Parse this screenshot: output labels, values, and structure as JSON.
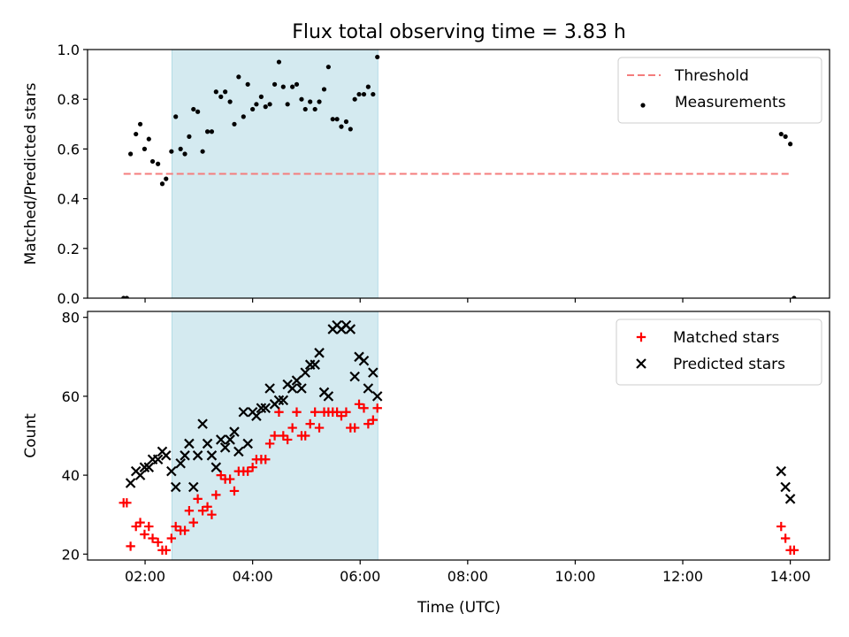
{
  "figure": {
    "title": "Flux total observing time = 3.83 h",
    "xlabel": "Time (UTC)",
    "x_ticks": [
      "02:00",
      "04:00",
      "06:00",
      "08:00",
      "10:00",
      "12:00",
      "14:00"
    ]
  },
  "chart_data": [
    {
      "type": "scatter",
      "ylabel": "Matched/Predicted stars",
      "xlim": [
        0.93,
        14.73
      ],
      "ylim": [
        0.0,
        1.0
      ],
      "y_ticks": [
        "0.0",
        "0.2",
        "0.4",
        "0.6",
        "0.8",
        "1.0"
      ],
      "legend_position": "top-right",
      "highlight_span": [
        2.5,
        6.33
      ],
      "highlight_color": "#d4eaf0",
      "threshold": {
        "name": "Threshold",
        "y": 0.5,
        "x": [
          1.6,
          14.0
        ],
        "color": "#f47c7c",
        "style": "dashed"
      },
      "series": [
        {
          "name": "Measurements",
          "marker": "dot",
          "color": "#000000",
          "points": [
            [
              1.6,
              0.0
            ],
            [
              1.66,
              0.0
            ],
            [
              1.73,
              0.58
            ],
            [
              1.83,
              0.66
            ],
            [
              1.91,
              0.7
            ],
            [
              1.99,
              0.6
            ],
            [
              2.07,
              0.64
            ],
            [
              2.14,
              0.55
            ],
            [
              2.24,
              0.54
            ],
            [
              2.32,
              0.46
            ],
            [
              2.39,
              0.48
            ],
            [
              2.49,
              0.59
            ],
            [
              2.57,
              0.73
            ],
            [
              2.66,
              0.6
            ],
            [
              2.74,
              0.58
            ],
            [
              2.82,
              0.65
            ],
            [
              2.9,
              0.76
            ],
            [
              2.98,
              0.75
            ],
            [
              3.07,
              0.59
            ],
            [
              3.16,
              0.67
            ],
            [
              3.24,
              0.67
            ],
            [
              3.32,
              0.83
            ],
            [
              3.41,
              0.81
            ],
            [
              3.49,
              0.83
            ],
            [
              3.58,
              0.79
            ],
            [
              3.66,
              0.7
            ],
            [
              3.74,
              0.89
            ],
            [
              3.83,
              0.73
            ],
            [
              3.91,
              0.86
            ],
            [
              4.0,
              0.76
            ],
            [
              4.07,
              0.78
            ],
            [
              4.16,
              0.81
            ],
            [
              4.24,
              0.77
            ],
            [
              4.32,
              0.78
            ],
            [
              4.41,
              0.86
            ],
            [
              4.49,
              0.95
            ],
            [
              4.57,
              0.85
            ],
            [
              4.65,
              0.78
            ],
            [
              4.74,
              0.85
            ],
            [
              4.82,
              0.86
            ],
            [
              4.91,
              0.8
            ],
            [
              4.98,
              0.76
            ],
            [
              5.07,
              0.79
            ],
            [
              5.16,
              0.76
            ],
            [
              5.24,
              0.79
            ],
            [
              5.33,
              0.84
            ],
            [
              5.41,
              0.93
            ],
            [
              5.49,
              0.72
            ],
            [
              5.57,
              0.72
            ],
            [
              5.65,
              0.69
            ],
            [
              5.74,
              0.71
            ],
            [
              5.82,
              0.68
            ],
            [
              5.9,
              0.8
            ],
            [
              5.98,
              0.82
            ],
            [
              6.07,
              0.82
            ],
            [
              6.15,
              0.85
            ],
            [
              6.24,
              0.82
            ],
            [
              6.32,
              0.97
            ],
            [
              13.83,
              0.66
            ],
            [
              13.91,
              0.65
            ],
            [
              14.0,
              0.62
            ],
            [
              14.07,
              0.0
            ]
          ]
        }
      ]
    },
    {
      "type": "scatter",
      "ylabel": "Count",
      "xlim": [
        0.93,
        14.73
      ],
      "ylim": [
        18.5,
        81.5
      ],
      "y_ticks": [
        "20",
        "40",
        "60",
        "80"
      ],
      "legend_position": "top-right",
      "highlight_span": [
        2.5,
        6.33
      ],
      "highlight_color": "#d4eaf0",
      "series": [
        {
          "name": "Matched stars",
          "marker": "plus",
          "color": "#ff0000",
          "points": [
            [
              1.6,
              33
            ],
            [
              1.66,
              33
            ],
            [
              1.73,
              22
            ],
            [
              1.83,
              27
            ],
            [
              1.91,
              28
            ],
            [
              1.99,
              25
            ],
            [
              2.07,
              27
            ],
            [
              2.14,
              24
            ],
            [
              2.24,
              23
            ],
            [
              2.32,
              21
            ],
            [
              2.39,
              21
            ],
            [
              2.49,
              24
            ],
            [
              2.57,
              27
            ],
            [
              2.66,
              26
            ],
            [
              2.74,
              26
            ],
            [
              2.82,
              31
            ],
            [
              2.9,
              28
            ],
            [
              2.98,
              34
            ],
            [
              3.07,
              31
            ],
            [
              3.16,
              32
            ],
            [
              3.24,
              30
            ],
            [
              3.32,
              35
            ],
            [
              3.41,
              40
            ],
            [
              3.49,
              39
            ],
            [
              3.58,
              39
            ],
            [
              3.66,
              36
            ],
            [
              3.74,
              41
            ],
            [
              3.83,
              41
            ],
            [
              3.91,
              41
            ],
            [
              4.0,
              42
            ],
            [
              4.07,
              44
            ],
            [
              4.16,
              44
            ],
            [
              4.24,
              44
            ],
            [
              4.32,
              48
            ],
            [
              4.41,
              50
            ],
            [
              4.49,
              56
            ],
            [
              4.57,
              50
            ],
            [
              4.65,
              49
            ],
            [
              4.74,
              52
            ],
            [
              4.82,
              56
            ],
            [
              4.91,
              50
            ],
            [
              4.98,
              50
            ],
            [
              5.07,
              53
            ],
            [
              5.16,
              56
            ],
            [
              5.24,
              52
            ],
            [
              5.33,
              56
            ],
            [
              5.41,
              56
            ],
            [
              5.49,
              56
            ],
            [
              5.57,
              56
            ],
            [
              5.65,
              55
            ],
            [
              5.74,
              56
            ],
            [
              5.82,
              52
            ],
            [
              5.9,
              52
            ],
            [
              5.98,
              58
            ],
            [
              6.07,
              57
            ],
            [
              6.15,
              53
            ],
            [
              6.24,
              54
            ],
            [
              6.32,
              57
            ],
            [
              13.83,
              27
            ],
            [
              13.91,
              24
            ],
            [
              14.0,
              21
            ],
            [
              14.07,
              21
            ]
          ]
        },
        {
          "name": "Predicted stars",
          "marker": "x",
          "color": "#000000",
          "points": [
            [
              1.73,
              38
            ],
            [
              1.83,
              41
            ],
            [
              1.91,
              40
            ],
            [
              1.99,
              42
            ],
            [
              2.07,
              42
            ],
            [
              2.14,
              44
            ],
            [
              2.24,
              44
            ],
            [
              2.32,
              46
            ],
            [
              2.39,
              45
            ],
            [
              2.49,
              41
            ],
            [
              2.57,
              37
            ],
            [
              2.66,
              43
            ],
            [
              2.74,
              45
            ],
            [
              2.82,
              48
            ],
            [
              2.9,
              37
            ],
            [
              2.98,
              45
            ],
            [
              3.07,
              53
            ],
            [
              3.16,
              48
            ],
            [
              3.24,
              45
            ],
            [
              3.32,
              42
            ],
            [
              3.41,
              49
            ],
            [
              3.49,
              47
            ],
            [
              3.58,
              49
            ],
            [
              3.66,
              51
            ],
            [
              3.74,
              46
            ],
            [
              3.83,
              56
            ],
            [
              3.91,
              48
            ],
            [
              4.0,
              56
            ],
            [
              4.07,
              55
            ],
            [
              4.16,
              57
            ],
            [
              4.24,
              57
            ],
            [
              4.32,
              62
            ],
            [
              4.41,
              58
            ],
            [
              4.49,
              59
            ],
            [
              4.57,
              59
            ],
            [
              4.65,
              63
            ],
            [
              4.74,
              62
            ],
            [
              4.82,
              64
            ],
            [
              4.91,
              62
            ],
            [
              4.98,
              66
            ],
            [
              5.07,
              68
            ],
            [
              5.16,
              68
            ],
            [
              5.24,
              71
            ],
            [
              5.33,
              61
            ],
            [
              5.41,
              60
            ],
            [
              5.49,
              77
            ],
            [
              5.57,
              78
            ],
            [
              5.65,
              77
            ],
            [
              5.74,
              78
            ],
            [
              5.82,
              77
            ],
            [
              5.9,
              65
            ],
            [
              5.98,
              70
            ],
            [
              6.07,
              69
            ],
            [
              6.15,
              62
            ],
            [
              6.24,
              66
            ],
            [
              6.32,
              60
            ],
            [
              13.83,
              41
            ],
            [
              13.91,
              37
            ],
            [
              14.0,
              34
            ]
          ]
        }
      ]
    }
  ]
}
